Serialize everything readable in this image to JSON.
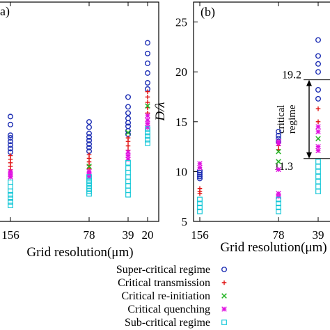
{
  "chart_data": [
    {
      "type": "scatter",
      "panel_label": "(a)",
      "xlabel": "Grid resolution(μm)",
      "ylabel": "",
      "x_ticks": [
        "156",
        "78",
        "39",
        "20"
      ],
      "x_scale": "log-reciprocal",
      "series": [
        {
          "name": "Super-critical regime",
          "points": [
            {
              "x": 156,
              "y": [
                16.4,
                15.5,
                14.3,
                14.0,
                13.6,
                13.2,
                12.8,
                12.4
              ]
            },
            {
              "x": 78,
              "y": [
                15.8,
                15.2,
                14.5,
                14.1,
                13.7,
                13.3,
                12.9,
                12.5
              ]
            },
            {
              "x": 39,
              "y": [
                18.6,
                17.5,
                16.8,
                16.2,
                15.7,
                15.3,
                14.8,
                14.4
              ]
            },
            {
              "x": 20,
              "y": [
                24.7,
                23.5,
                22.4,
                21.3,
                20.2,
                19.5
              ]
            }
          ]
        },
        {
          "name": "Critical transmission",
          "points": [
            {
              "x": 156,
              "y": [
                12.0,
                11.6,
                11.2,
                10.8,
                10.4
              ]
            },
            {
              "x": 78,
              "y": [
                12.1,
                11.7,
                11.3,
                10.9,
                10.5
              ]
            },
            {
              "x": 39,
              "y": [
                14.0,
                13.6,
                13.1,
                12.6
              ]
            },
            {
              "x": 20,
              "y": [
                19.2,
                18.6,
                18.0,
                17.4,
                16.8
              ]
            }
          ]
        },
        {
          "name": "Critical re-initiation",
          "points": [
            {
              "x": 78,
              "y": [
                10.8
              ]
            },
            {
              "x": 39,
              "y": [
                14.6
              ]
            },
            {
              "x": 20,
              "y": [
                17.6
              ]
            }
          ]
        },
        {
          "name": "Critical quenching",
          "points": [
            {
              "x": 156,
              "y": [
                10.2,
                9.9,
                9.6
              ]
            },
            {
              "x": 78,
              "y": [
                10.2,
                9.9,
                9.6
              ]
            },
            {
              "x": 39,
              "y": [
                12.4,
                12.0,
                11.6
              ]
            },
            {
              "x": 20,
              "y": [
                16.5,
                16.0,
                15.6,
                15.2
              ]
            }
          ]
        },
        {
          "name": "Sub-critical regime",
          "points": [
            {
              "x": 156,
              "y": [
                9.0,
                8.5,
                8.0,
                7.6,
                7.2,
                6.8,
                6.4
              ]
            },
            {
              "x": 78,
              "y": [
                9.6,
                9.2,
                8.9,
                8.6,
                8.3,
                8.0,
                7.7
              ]
            },
            {
              "x": 39,
              "y": [
                11.2,
                10.6,
                10.1,
                9.6,
                9.1,
                8.6,
                8.1,
                7.6
              ]
            },
            {
              "x": 20,
              "y": [
                15.0,
                14.6,
                14.2,
                13.8,
                13.4
              ]
            }
          ]
        }
      ]
    },
    {
      "type": "scatter",
      "panel_label": "(b)",
      "xlabel": "Grid resolution(μm)",
      "ylabel": "D/λ",
      "ylim": [
        5,
        27
      ],
      "y_ticks": [
        5,
        10,
        15,
        20,
        25
      ],
      "x_ticks": [
        "156",
        "78",
        "39"
      ],
      "x_scale": "log-reciprocal",
      "annotation": {
        "label": "critical regime",
        "upper": 19.2,
        "lower": 11.3,
        "upper_text": "19.2",
        "lower_text": "11.3"
      },
      "series": [
        {
          "name": "Super-critical regime",
          "points": [
            {
              "x": 156,
              "y": [
                10.1,
                9.9,
                9.7,
                9.5,
                9.3
              ]
            },
            {
              "x": 78,
              "y": [
                14.0,
                13.6,
                13.3,
                13.0
              ]
            },
            {
              "x": 39,
              "y": [
                23.2,
                21.6,
                20.8,
                20.0,
                18.2,
                17.3
              ]
            }
          ]
        },
        {
          "name": "Critical transmission",
          "points": [
            {
              "x": 156,
              "y": [
                8.3,
                8.0,
                7.8
              ]
            },
            {
              "x": 78,
              "y": [
                12.6,
                12.2
              ]
            },
            {
              "x": 39,
              "y": [
                16.3,
                15.0
              ]
            }
          ]
        },
        {
          "name": "Critical re-initiation",
          "points": [
            {
              "x": 78,
              "y": [
                12.0,
                11.0
              ]
            },
            {
              "x": 39,
              "y": [
                13.3
              ]
            }
          ]
        },
        {
          "name": "Critical quenching",
          "points": [
            {
              "x": 156,
              "y": [
                10.8,
                10.4
              ]
            },
            {
              "x": 78,
              "y": [
                13.0,
                12.8,
                10.2,
                7.8,
                7.5
              ]
            },
            {
              "x": 39,
              "y": [
                14.5,
                14.0,
                12.5,
                12.1
              ]
            }
          ]
        },
        {
          "name": "Sub-critical regime",
          "points": [
            {
              "x": 156,
              "y": [
                7.2,
                6.8,
                6.4,
                6.0
              ]
            },
            {
              "x": 78,
              "y": [
                7.2,
                6.8,
                6.4,
                6.0
              ]
            },
            {
              "x": 39,
              "y": [
                11.0,
                10.5,
                10.0,
                9.5,
                9.0,
                8.5,
                8.0
              ]
            }
          ]
        }
      ]
    }
  ],
  "legend": {
    "placement": "bottom",
    "items": [
      {
        "label": "Super-critical regime",
        "marker": "circle",
        "color": "#1e2fb4"
      },
      {
        "label": "Critical transmission",
        "marker": "plus",
        "color": "#e01010"
      },
      {
        "label": "Critical re-initiation",
        "marker": "cross",
        "color": "#24b424"
      },
      {
        "label": "Critical quenching",
        "marker": "star",
        "color": "#e010e0"
      },
      {
        "label": "Sub-critical regime",
        "marker": "square",
        "color": "#18c8d8"
      }
    ]
  }
}
